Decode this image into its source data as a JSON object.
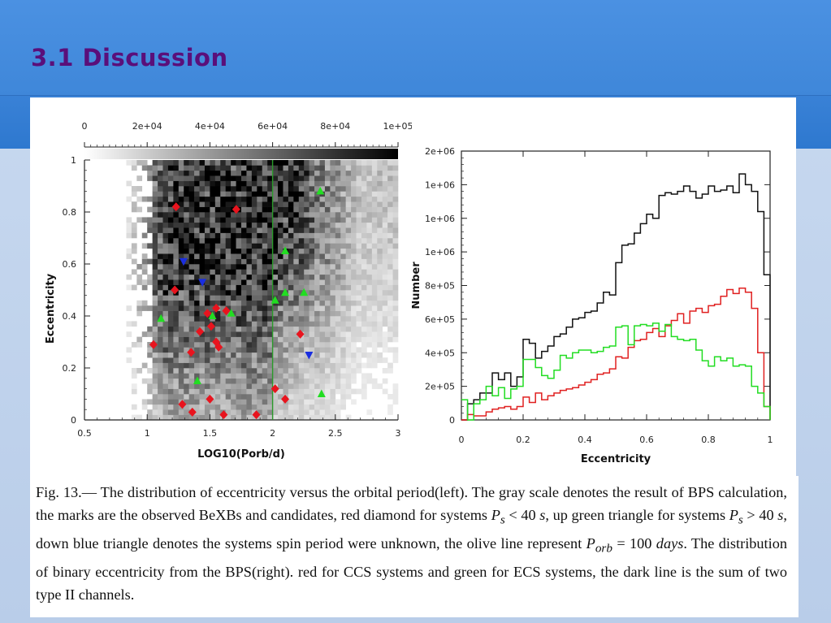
{
  "slide": {
    "title": "3.1 Discussion"
  },
  "caption": {
    "fig_label": "Fig.  13.",
    "s1": "— The distribution of eccentricity versus the orbital period(left).  The gray scale denotes the result of BPS calculation, the marks are the observed BeXBs and candidates, red diamond for systems ",
    "ps": "P",
    "ps_sub": "s",
    "lt40": " < 40 ",
    "s_unit": "s",
    "s2": ", up green triangle for systems ",
    "gt40": " > 40 ",
    "s3": ", down blue triangle denotes the systems spin period were unknown, the olive line represent ",
    "porb": "P",
    "porb_sub": "orb",
    "eq100": " = 100 ",
    "days": "days",
    "s4": ". The distribution of binary eccentricity from the BPS(right).  red for CCS systems and green for ECS systems, the dark line is the sum of two type II channels."
  },
  "chart_data": [
    {
      "type": "scatter",
      "xlabel": "LOG10(Porb/d)",
      "ylabel": "Eccentricity",
      "xlim": [
        0.5,
        3
      ],
      "ylim": [
        0,
        1
      ],
      "xticks": [
        "0.5",
        "1",
        "1.5",
        "2",
        "2.5",
        "3"
      ],
      "yticks": [
        "0",
        "0.2",
        "0.4",
        "0.6",
        "0.8",
        "1"
      ],
      "colorbar": {
        "range": [
          0,
          100000
        ],
        "ticks": [
          "0",
          "2e+04",
          "4e+04",
          "6e+04",
          "8e+04",
          "1e+05"
        ]
      },
      "vertical_line": {
        "x": 2,
        "color": "#2a9a2a"
      },
      "series": [
        {
          "marker": "diamond",
          "color": "#e8141e",
          "points": [
            [
              1.23,
              0.82
            ],
            [
              1.71,
              0.81
            ],
            [
              1.22,
              0.5
            ],
            [
              1.48,
              0.41
            ],
            [
              1.55,
              0.43
            ],
            [
              1.63,
              0.42
            ],
            [
              1.51,
              0.36
            ],
            [
              1.42,
              0.34
            ],
            [
              1.05,
              0.29
            ],
            [
              1.55,
              0.3
            ],
            [
              1.57,
              0.28
            ],
            [
              1.35,
              0.26
            ],
            [
              2.22,
              0.33
            ],
            [
              2.02,
              0.12
            ],
            [
              2.1,
              0.08
            ],
            [
              1.28,
              0.06
            ],
            [
              1.5,
              0.08
            ],
            [
              1.36,
              0.03
            ],
            [
              1.61,
              0.02
            ],
            [
              1.87,
              0.02
            ]
          ]
        },
        {
          "marker": "triangle-up",
          "color": "#22dd22",
          "points": [
            [
              2.38,
              0.88
            ],
            [
              2.1,
              0.65
            ],
            [
              2.02,
              0.46
            ],
            [
              2.1,
              0.49
            ],
            [
              2.25,
              0.49
            ],
            [
              1.11,
              0.39
            ],
            [
              1.52,
              0.4
            ],
            [
              1.67,
              0.41
            ],
            [
              1.4,
              0.15
            ],
            [
              2.39,
              0.1
            ]
          ]
        },
        {
          "marker": "triangle-down",
          "color": "#1a2ee0",
          "points": [
            [
              1.29,
              0.61
            ],
            [
              1.44,
              0.53
            ],
            [
              2.29,
              0.25
            ]
          ]
        }
      ]
    },
    {
      "type": "line",
      "xlabel": "Eccentricity",
      "ylabel": "Number",
      "xlim": [
        0,
        1
      ],
      "ylim": [
        0,
        2000000
      ],
      "xticks": [
        "0",
        "0.2",
        "0.4",
        "0.6",
        "0.8",
        "1"
      ],
      "yticks": [
        "0",
        "2e+05",
        "4e+05",
        "6e+05",
        "8e+05",
        "1e+06",
        "1e+06",
        "1e+06",
        "2e+06"
      ],
      "bin_width": 0.02,
      "series": [
        {
          "color": "#111111",
          "values": [
            0,
            120000,
            150000,
            200000,
            200000,
            350000,
            300000,
            350000,
            250000,
            320000,
            600000,
            570000,
            460000,
            510000,
            550000,
            620000,
            640000,
            690000,
            750000,
            760000,
            800000,
            810000,
            870000,
            950000,
            930000,
            1170000,
            1300000,
            1310000,
            1390000,
            1460000,
            1530000,
            1500000,
            1670000,
            1690000,
            1680000,
            1700000,
            1740000,
            1700000,
            1650000,
            1680000,
            1740000,
            1700000,
            1710000,
            1740000,
            1690000,
            1830000,
            1750000,
            1700000,
            1550000,
            1080000
          ]
        },
        {
          "color": "#e02020",
          "values": [
            0,
            40000,
            30000,
            30000,
            60000,
            80000,
            90000,
            100000,
            80000,
            100000,
            170000,
            130000,
            200000,
            150000,
            180000,
            200000,
            220000,
            230000,
            240000,
            260000,
            280000,
            300000,
            340000,
            350000,
            380000,
            470000,
            460000,
            540000,
            590000,
            600000,
            650000,
            680000,
            620000,
            700000,
            740000,
            790000,
            720000,
            810000,
            830000,
            800000,
            850000,
            860000,
            920000,
            970000,
            940000,
            980000,
            950000,
            830000,
            500000,
            100000
          ]
        },
        {
          "color": "#22dd22",
          "values": [
            150000,
            0,
            120000,
            150000,
            250000,
            180000,
            240000,
            160000,
            230000,
            250000,
            450000,
            450000,
            390000,
            330000,
            310000,
            370000,
            480000,
            460000,
            500000,
            520000,
            520000,
            500000,
            510000,
            540000,
            550000,
            690000,
            700000,
            560000,
            700000,
            710000,
            700000,
            720000,
            660000,
            710000,
            620000,
            600000,
            590000,
            600000,
            520000,
            440000,
            400000,
            470000,
            440000,
            460000,
            400000,
            410000,
            400000,
            250000,
            200000,
            100000
          ]
        }
      ]
    }
  ]
}
